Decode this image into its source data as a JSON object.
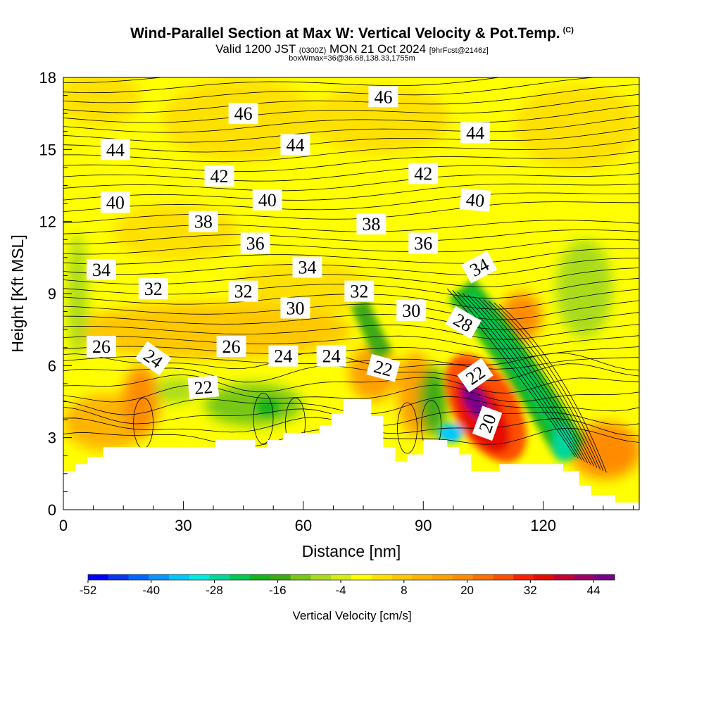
{
  "title": {
    "main": "Wind-Parallel Section at Max W: Vertical Velocity & Pot.Temp.",
    "copyright": "(C)",
    "valid_prefix": "Valid 1200 JST",
    "valid_utc": "(0300Z)",
    "valid_date": "MON 21 Oct 2024",
    "forecast": "[9hrFcst@2146z]",
    "box_info": "boxWmax=36@36.68,138.33,1755m"
  },
  "chart_data": {
    "type": "heatmap",
    "xlabel": "Distance [nm]",
    "ylabel": "Height [Kft MSL]",
    "xlim": [
      0,
      144
    ],
    "ylim": [
      0,
      18
    ],
    "x_ticks": [
      0,
      30,
      60,
      90,
      120
    ],
    "y_ticks": [
      0,
      3,
      6,
      9,
      12,
      15,
      18
    ],
    "fill_variable": "Vertical Velocity [cm/s]",
    "contour_variable": "Potential temperature",
    "colorbar": {
      "label": "Vertical Velocity [cm/s]",
      "min": -52,
      "max": 48,
      "step": 4,
      "tick_labels": [
        -52,
        -40,
        -28,
        -16,
        -4,
        8,
        20,
        32,
        44
      ],
      "colors": [
        "#0000ff",
        "#0a36f2",
        "#0066ff",
        "#0a96ff",
        "#00c8ff",
        "#00ebe1",
        "#00d79b",
        "#00c850",
        "#14b41e",
        "#3caa14",
        "#78c814",
        "#aadc1e",
        "#d7eb14",
        "#ffff00",
        "#ffe100",
        "#ffc800",
        "#ffb400",
        "#ffa000",
        "#ff8c00",
        "#ff6e00",
        "#ff5000",
        "#ff1e00",
        "#e60a00",
        "#c80032",
        "#a00064",
        "#78008c"
      ]
    },
    "contour_labels": [
      {
        "value": "46",
        "x": 45,
        "y": 16.5,
        "angle": 0
      },
      {
        "value": "46",
        "x": 80,
        "y": 17.2,
        "angle": 0
      },
      {
        "value": "44",
        "x": 13,
        "y": 15.0,
        "angle": 0
      },
      {
        "value": "44",
        "x": 58,
        "y": 15.2,
        "angle": 0
      },
      {
        "value": "44",
        "x": 103,
        "y": 15.7,
        "angle": 0
      },
      {
        "value": "42",
        "x": 39,
        "y": 13.9,
        "angle": 0
      },
      {
        "value": "42",
        "x": 90,
        "y": 14.0,
        "angle": 0
      },
      {
        "value": "40",
        "x": 13,
        "y": 12.8,
        "angle": 0
      },
      {
        "value": "40",
        "x": 51,
        "y": 12.9,
        "angle": 0
      },
      {
        "value": "40",
        "x": 103,
        "y": 12.9,
        "angle": 5
      },
      {
        "value": "38",
        "x": 35,
        "y": 12.0,
        "angle": 0
      },
      {
        "value": "38",
        "x": 77,
        "y": 11.9,
        "angle": 0
      },
      {
        "value": "36",
        "x": 48,
        "y": 11.1,
        "angle": 0
      },
      {
        "value": "36",
        "x": 90,
        "y": 11.1,
        "angle": 0
      },
      {
        "value": "34",
        "x": 9.5,
        "y": 10.0,
        "angle": 0
      },
      {
        "value": "34",
        "x": 61,
        "y": 10.1,
        "angle": 0
      },
      {
        "value": "34",
        "x": 104,
        "y": 10.1,
        "angle": -28
      },
      {
        "value": "32",
        "x": 22.5,
        "y": 9.2,
        "angle": 0
      },
      {
        "value": "32",
        "x": 45,
        "y": 9.1,
        "angle": 0
      },
      {
        "value": "32",
        "x": 74,
        "y": 9.1,
        "angle": 0
      },
      {
        "value": "30",
        "x": 58,
        "y": 8.4,
        "angle": 0
      },
      {
        "value": "30",
        "x": 87,
        "y": 8.3,
        "angle": 0
      },
      {
        "value": "28",
        "x": 100,
        "y": 7.8,
        "angle": 30
      },
      {
        "value": "26",
        "x": 9.5,
        "y": 6.8,
        "angle": 0
      },
      {
        "value": "26",
        "x": 42,
        "y": 6.8,
        "angle": 0
      },
      {
        "value": "24",
        "x": 22.5,
        "y": 6.3,
        "angle": 35
      },
      {
        "value": "24",
        "x": 55,
        "y": 6.4,
        "angle": 0
      },
      {
        "value": "24",
        "x": 67,
        "y": 6.4,
        "angle": 0
      },
      {
        "value": "22",
        "x": 80,
        "y": 5.9,
        "angle": 15
      },
      {
        "value": "22",
        "x": 35,
        "y": 5.1,
        "angle": -5
      },
      {
        "value": "22",
        "x": 103,
        "y": 5.6,
        "angle": -35
      },
      {
        "value": "20",
        "x": 106,
        "y": 3.6,
        "angle": -70
      }
    ],
    "terrain": [
      [
        0,
        1.6
      ],
      [
        3,
        1.6
      ],
      [
        3,
        1.9
      ],
      [
        6,
        1.9
      ],
      [
        6,
        2.2
      ],
      [
        10,
        2.2
      ],
      [
        10,
        2.6
      ],
      [
        38,
        2.6
      ],
      [
        38,
        2.9
      ],
      [
        48,
        2.9
      ],
      [
        48,
        2.6
      ],
      [
        51,
        2.6
      ],
      [
        51,
        2.9
      ],
      [
        55,
        2.9
      ],
      [
        55,
        3.2
      ],
      [
        64,
        3.2
      ],
      [
        64,
        3.5
      ],
      [
        67,
        3.5
      ],
      [
        67,
        4.0
      ],
      [
        70,
        4.0
      ],
      [
        70,
        4.6
      ],
      [
        77,
        4.6
      ],
      [
        77,
        3.9
      ],
      [
        80,
        3.9
      ],
      [
        80,
        2.6
      ],
      [
        83,
        2.6
      ],
      [
        83,
        2.0
      ],
      [
        86,
        2.0
      ],
      [
        86,
        2.3
      ],
      [
        90,
        2.3
      ],
      [
        90,
        2.9
      ],
      [
        96,
        2.9
      ],
      [
        96,
        2.6
      ],
      [
        99,
        2.6
      ],
      [
        99,
        2.3
      ],
      [
        102,
        2.3
      ],
      [
        102,
        1.6
      ],
      [
        109,
        1.6
      ],
      [
        109,
        1.9
      ],
      [
        125,
        1.9
      ],
      [
        125,
        1.6
      ],
      [
        129,
        1.6
      ],
      [
        129,
        1.0
      ],
      [
        132,
        1.0
      ],
      [
        132,
        0.6
      ],
      [
        138,
        0.6
      ],
      [
        138,
        0.3
      ],
      [
        144,
        0.3
      ]
    ]
  }
}
